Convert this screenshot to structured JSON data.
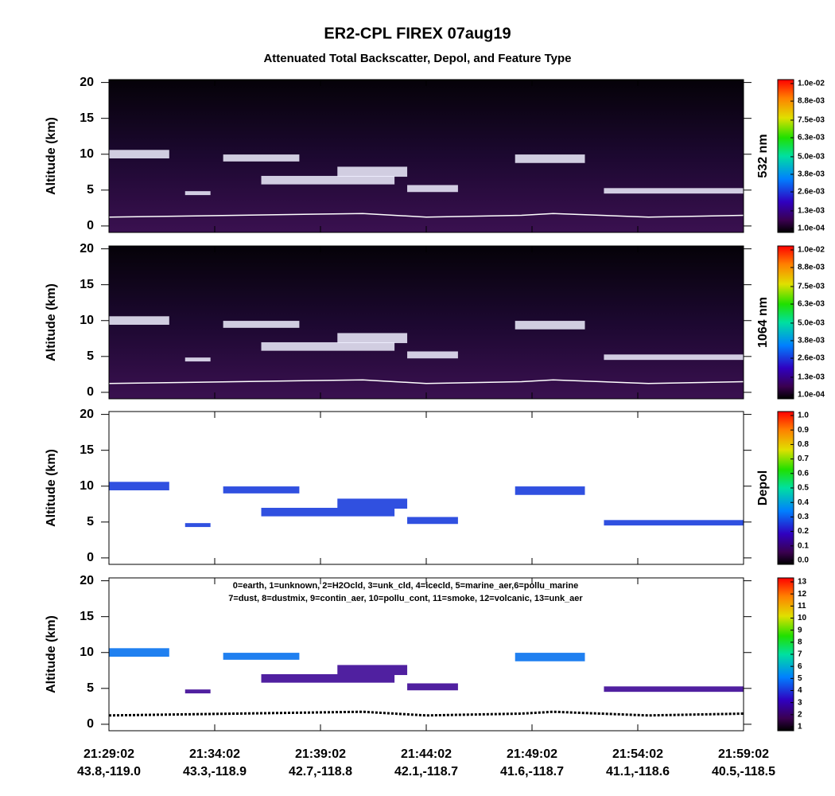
{
  "title": "ER2-CPL FIREX 07aug19",
  "subtitle": "Attenuated Total Backscatter, Depol, and Feature Type",
  "x_ticks": [
    {
      "time": "21:29:02",
      "location": "43.8,-119.0"
    },
    {
      "time": "21:34:02",
      "location": "43.3,-118.9"
    },
    {
      "time": "21:39:02",
      "location": "42.7,-118.8"
    },
    {
      "time": "21:44:02",
      "location": "42.1,-118.7"
    },
    {
      "time": "21:49:02",
      "location": "41.6,-118.7"
    },
    {
      "time": "21:54:02",
      "location": "41.1,-118.6"
    },
    {
      "time": "21:59:02",
      "location": "40.5,-118.5"
    }
  ],
  "chart_data": [
    {
      "type": "heatmap",
      "y_label": "Altitude (km)",
      "ylim": [
        -0.9,
        20.4
      ],
      "yticks": [
        0,
        5,
        10,
        15,
        20
      ],
      "colorbar": {
        "label": "532 nm",
        "range": [
          0.0001,
          0.01
        ],
        "ticks": [
          {
            "value": 0.0001,
            "label": "1.0e-04"
          },
          {
            "value": 0.0013,
            "label": "1.3e-03"
          },
          {
            "value": 0.0026,
            "label": "2.6e-03"
          },
          {
            "value": 0.0038,
            "label": "3.8e-03"
          },
          {
            "value": 0.005,
            "label": "5.0e-03"
          },
          {
            "value": 0.0063,
            "label": "6.3e-03"
          },
          {
            "value": 0.0075,
            "label": "7.5e-03"
          },
          {
            "value": 0.0088,
            "label": "8.8e-03"
          },
          {
            "value": 0.01,
            "label": "1.0e-02"
          }
        ]
      }
    },
    {
      "type": "heatmap",
      "y_label": "Altitude (km)",
      "ylim": [
        -0.9,
        20.4
      ],
      "yticks": [
        0,
        5,
        10,
        15,
        20
      ],
      "colorbar": {
        "label": "1064 nm",
        "range": [
          0.0001,
          0.01
        ],
        "ticks": [
          {
            "value": 0.0001,
            "label": "1.0e-04"
          },
          {
            "value": 0.0013,
            "label": "1.3e-03"
          },
          {
            "value": 0.0026,
            "label": "2.6e-03"
          },
          {
            "value": 0.0038,
            "label": "3.8e-03"
          },
          {
            "value": 0.005,
            "label": "5.0e-03"
          },
          {
            "value": 0.0063,
            "label": "6.3e-03"
          },
          {
            "value": 0.0075,
            "label": "7.5e-03"
          },
          {
            "value": 0.0088,
            "label": "8.8e-03"
          },
          {
            "value": 0.01,
            "label": "1.0e-02"
          }
        ]
      }
    },
    {
      "type": "heatmap",
      "y_label": "Altitude (km)",
      "ylim": [
        -0.9,
        20.4
      ],
      "yticks": [
        0,
        5,
        10,
        15,
        20
      ],
      "colorbar": {
        "label": "Depol",
        "range": [
          0,
          1
        ],
        "ticks": [
          {
            "value": 0,
            "label": "0.0"
          },
          0.1,
          0.2,
          0.3,
          0.4,
          0.5,
          0.6,
          0.7,
          0.8,
          0.9,
          {
            "value": 1,
            "label": "1.0"
          }
        ]
      }
    },
    {
      "type": "heatmap",
      "y_label": "Altitude (km)",
      "ylim": [
        -0.9,
        20.4
      ],
      "yticks": [
        0,
        5,
        10,
        15,
        20
      ],
      "annotation": [
        "0=earth, 1=unknown, 2=H2Ocld, 3=unk_cld, 4=icecld, 5=marine_aer,6=pollu_marine",
        "7=dust, 8=dustmix, 9=contin_aer, 10=pollu_cont, 11=smoke, 12=volcanic, 13=unk_aer"
      ],
      "colorbar": {
        "range": [
          1,
          13
        ],
        "ticks": [
          1,
          2,
          3,
          4,
          5,
          6,
          7,
          8,
          9,
          10,
          11,
          12,
          13
        ]
      }
    }
  ]
}
